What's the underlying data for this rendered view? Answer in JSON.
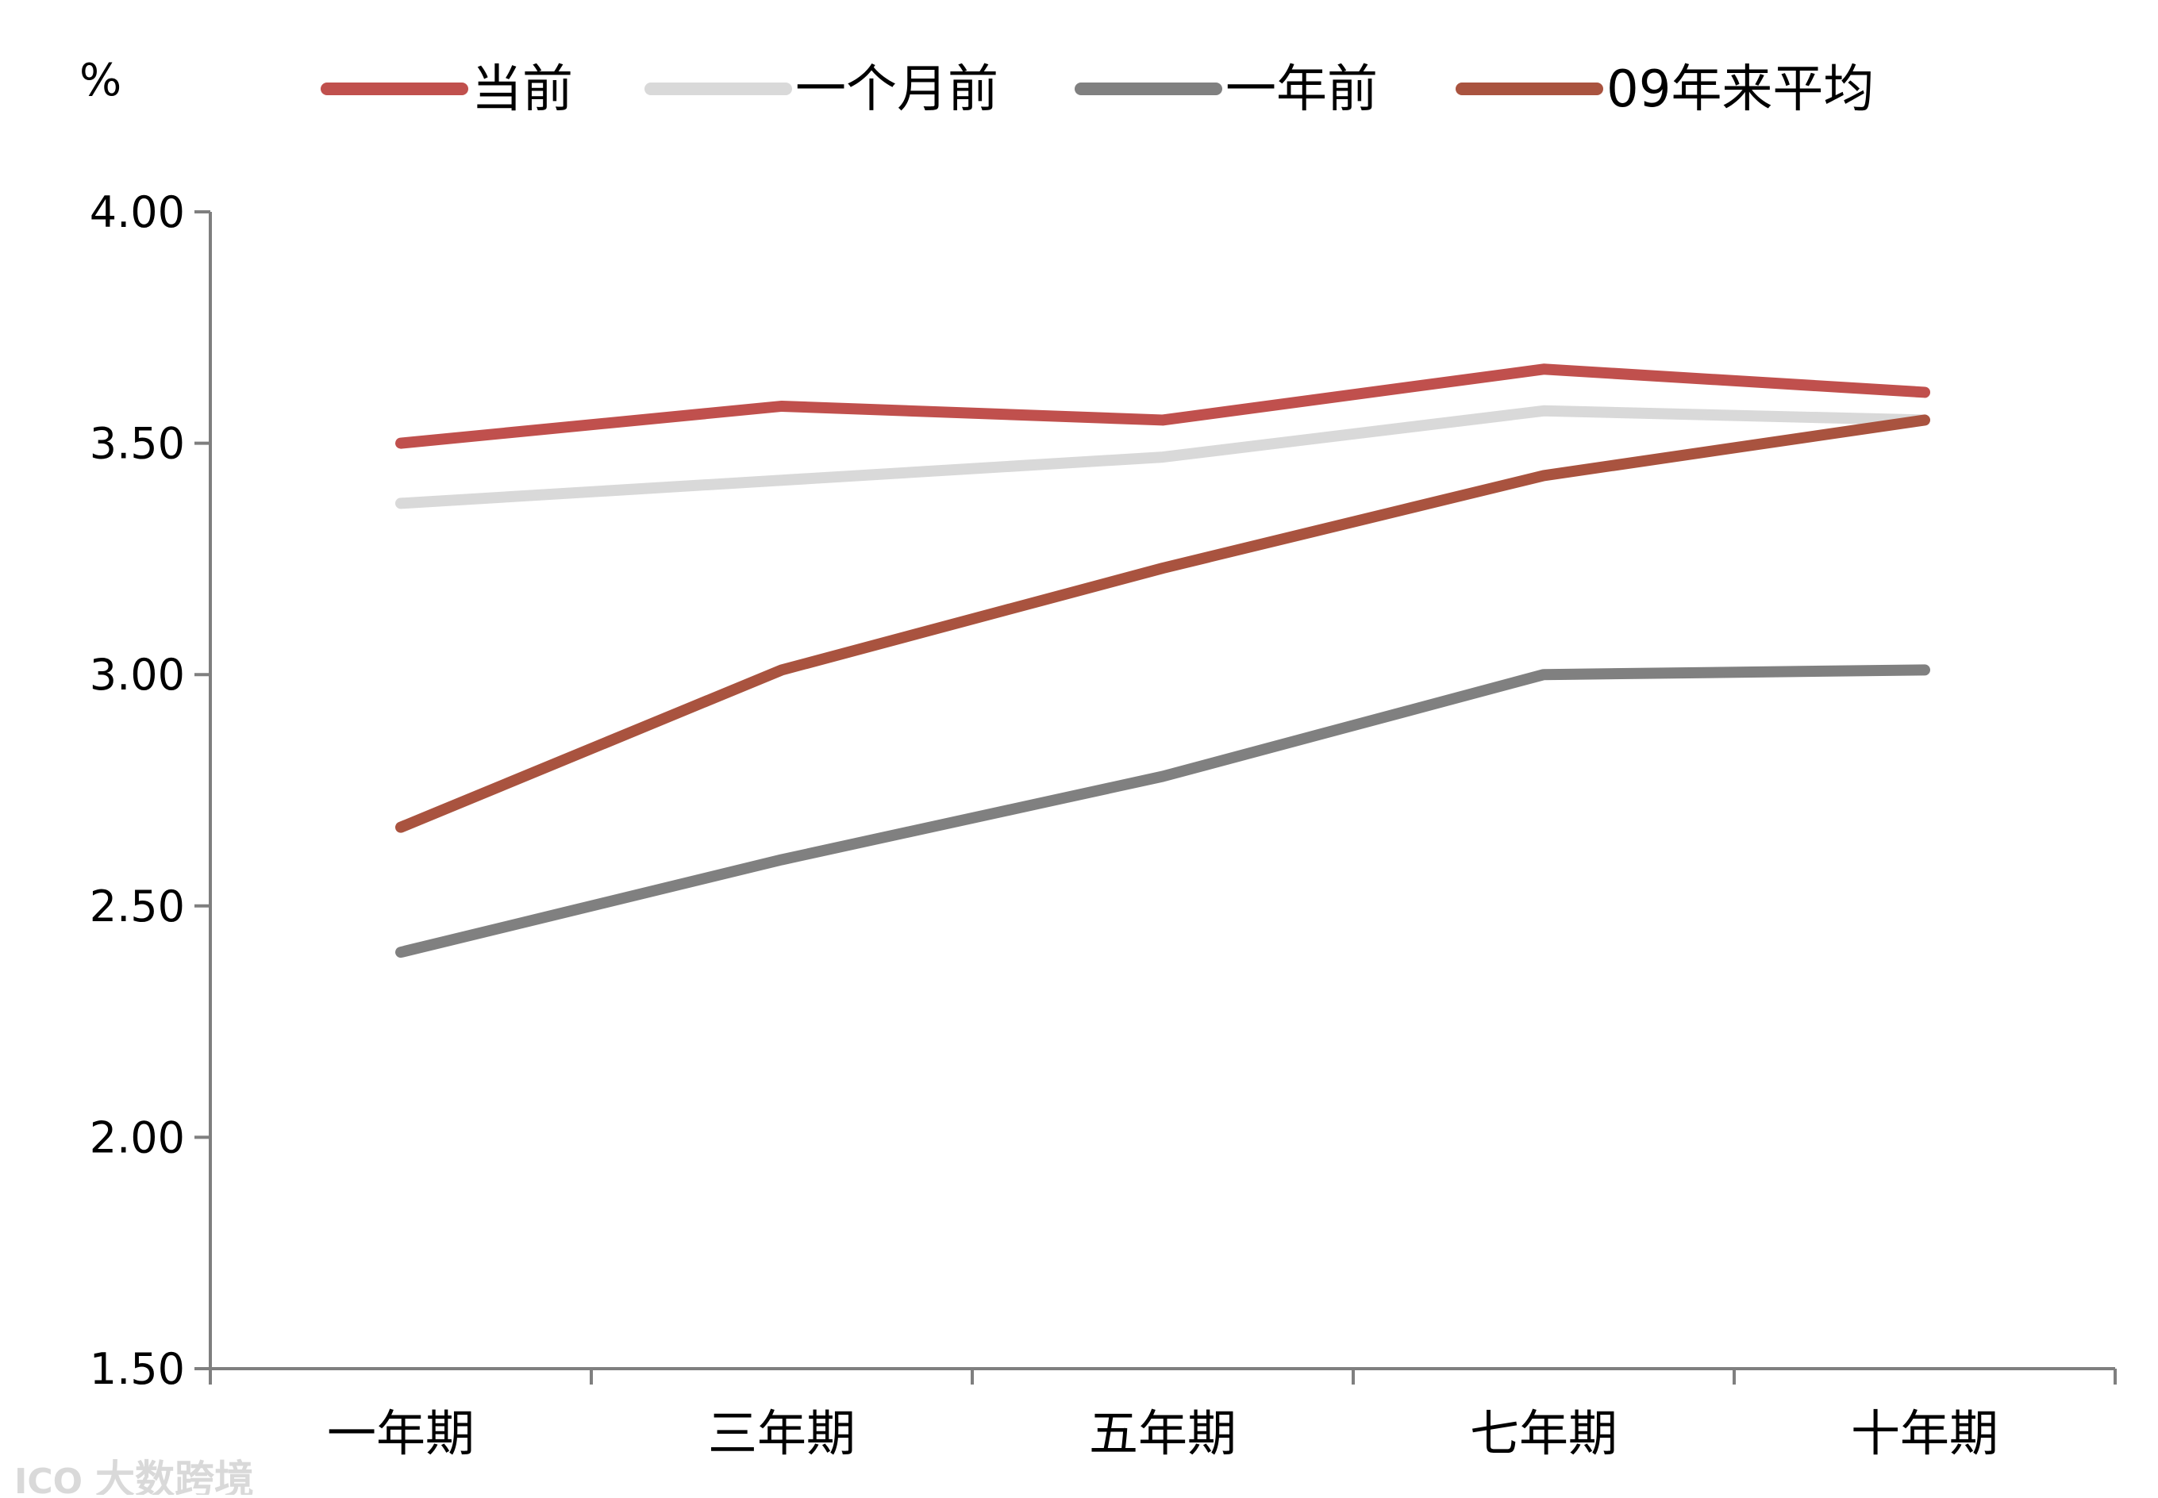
{
  "chart_data": {
    "type": "line",
    "unit_label": "%",
    "categories": [
      "一年期",
      "三年期",
      "五年期",
      "七年期",
      "十年期"
    ],
    "ylim": [
      1.5,
      4.0
    ],
    "yticks": [
      "4.00",
      "3.50",
      "3.00",
      "2.50",
      "2.00",
      "1.50"
    ],
    "ytick_values": [
      4.0,
      3.5,
      3.0,
      2.5,
      2.0,
      1.5
    ],
    "grid": false,
    "legend_position": "top",
    "series": [
      {
        "name": "当前",
        "color": "#c0504d",
        "values": [
          3.5,
          3.58,
          3.55,
          3.66,
          3.61
        ]
      },
      {
        "name": "一个月前",
        "color": "#d9d9d9",
        "values": [
          3.37,
          3.42,
          3.47,
          3.57,
          3.55
        ]
      },
      {
        "name": "一年前",
        "color": "#808080",
        "values": [
          2.4,
          2.6,
          2.78,
          3.0,
          3.01
        ]
      },
      {
        "name": "09年来平均",
        "color": "#a9533f",
        "values": [
          2.67,
          3.01,
          3.23,
          3.43,
          3.55
        ]
      }
    ]
  },
  "watermark": {
    "text": "大数跨境",
    "logo_text": "ICO"
  }
}
